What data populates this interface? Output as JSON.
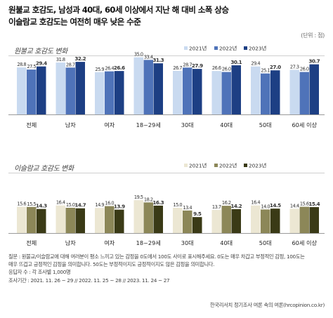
{
  "title_lines": [
    "원불교 호감도, 남성과 40대, 60세 이상에서 지난 해 대비 소폭 상승",
    "이슬람교 호감도는 여전히 매우 낮은 수준"
  ],
  "unit": "(단위 : 점)",
  "chart_data": [
    {
      "type": "bar",
      "title": "원불교 호감도 변화",
      "categories": [
        "전체",
        "남자",
        "여자",
        "18~29세",
        "30대",
        "40대",
        "50대",
        "60세 이상"
      ],
      "series": [
        {
          "name": "2021년",
          "color": "#c9daf0",
          "values": [
            28.8,
            31.8,
            25.9,
            35.0,
            26.7,
            26.6,
            29.4,
            27.3
          ]
        },
        {
          "name": "2022년",
          "color": "#4f73b9",
          "values": [
            27.5,
            28.7,
            26.4,
            33.4,
            28.7,
            26.0,
            25.1,
            26.0
          ]
        },
        {
          "name": "2023년",
          "color": "#1d3f84",
          "values": [
            29.4,
            32.2,
            26.6,
            31.3,
            27.9,
            30.1,
            27.0,
            30.7
          ]
        }
      ],
      "ylim": [
        0,
        40
      ]
    },
    {
      "type": "bar",
      "title": "이슬람교 호감도 변화",
      "categories": [
        "전체",
        "남자",
        "여자",
        "18~29세",
        "30대",
        "40대",
        "50대",
        "60세 이상"
      ],
      "series": [
        {
          "name": "2021년",
          "color": "#ece7d3",
          "values": [
            15.6,
            16.4,
            14.9,
            19.5,
            15.0,
            13.7,
            16.4,
            14.4
          ]
        },
        {
          "name": "2022년",
          "color": "#8c8758",
          "values": [
            15.5,
            15.0,
            16.0,
            18.2,
            13.4,
            16.2,
            14.0,
            15.6
          ]
        },
        {
          "name": "2023년",
          "color": "#3a3a16",
          "values": [
            14.3,
            14.7,
            13.9,
            16.3,
            9.5,
            14.2,
            14.5,
            15.4
          ]
        }
      ],
      "ylim": [
        0,
        40
      ]
    }
  ],
  "footer": {
    "question_line1": "질문 : 원불교/이슬람교에 대해 여러분이 평소 느끼고 있는 감정을 0도에서 100도 사이로 표시해주세요. 0도는 매우 차갑고 부정적인 감정, 100도는",
    "question_line2": "매우 뜨겁고 긍정적인 감정을 의미합니다. 50도는 부정적이지도 긍정적이지도 않은 감정을 의미합니다.",
    "respondents": "응답자 수 : 각 조사별 1,000명",
    "period": "조사기간 : 2021. 11. 26 ~ 29 // 2022. 11. 25 ~ 28 // 2023. 11. 24 ~ 27",
    "source": "한국리서치 정기조사 여론 속의 여론(hrcopinion.co.kr)"
  }
}
